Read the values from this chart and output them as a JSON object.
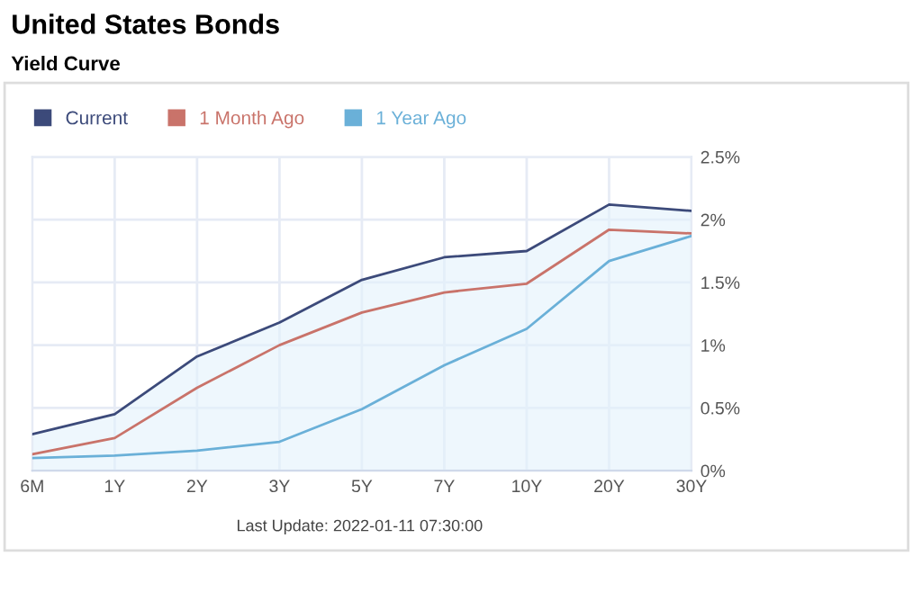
{
  "chart_data": {
    "type": "line",
    "title": "United States Bonds",
    "subtitle": "Yield Curve",
    "categories": [
      "6M",
      "1Y",
      "2Y",
      "3Y",
      "5Y",
      "7Y",
      "10Y",
      "20Y",
      "30Y"
    ],
    "series": [
      {
        "name": "Current",
        "type": "area",
        "color": "#3c4a7a",
        "values": [
          0.29,
          0.45,
          0.91,
          1.18,
          1.52,
          1.7,
          1.75,
          2.12,
          2.07
        ]
      },
      {
        "name": "1 Month Ago",
        "color": "#c9736a",
        "values": [
          0.13,
          0.26,
          0.66,
          1.0,
          1.26,
          1.42,
          1.49,
          1.92,
          1.89
        ]
      },
      {
        "name": "1 Year Ago",
        "color": "#6ab0d8",
        "values": [
          0.1,
          0.12,
          0.16,
          0.23,
          0.49,
          0.84,
          1.13,
          1.67,
          1.87
        ]
      }
    ],
    "ylim": [
      0,
      2.5
    ],
    "yticks": [
      {
        "value": 0,
        "label": "0%"
      },
      {
        "value": 0.5,
        "label": "0.5%"
      },
      {
        "value": 1,
        "label": "1%"
      },
      {
        "value": 1.5,
        "label": "1.5%"
      },
      {
        "value": 2,
        "label": "2%"
      },
      {
        "value": 2.5,
        "label": "2.5%"
      }
    ],
    "grid": true,
    "legend": "top left",
    "marker": "none",
    "line_style": "solid",
    "annotations": [
      "Last Update: 2022-01-11 07:30:00"
    ]
  }
}
